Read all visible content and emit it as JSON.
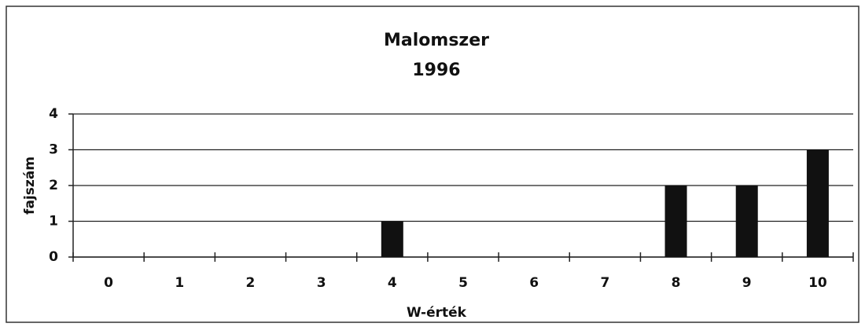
{
  "chart_data": {
    "type": "bar",
    "title": "Malomszer",
    "subtitle": "1996",
    "x_label": "W-érték",
    "y_label": "fajszám",
    "categories": [
      "0",
      "1",
      "2",
      "3",
      "4",
      "5",
      "6",
      "7",
      "8",
      "9",
      "10"
    ],
    "values": [
      0,
      0,
      0,
      0,
      1,
      0,
      0,
      0,
      2,
      2,
      3
    ],
    "color": "#111111",
    "ylim": [
      0,
      4
    ],
    "yticks": [
      0,
      1,
      2,
      3,
      4
    ],
    "grid": true
  }
}
